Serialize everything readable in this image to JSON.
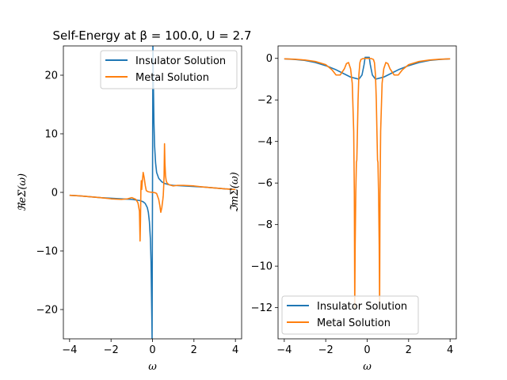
{
  "chart_data": [
    {
      "type": "line",
      "title": "Self-Energy at β = 100.0, U = 2.7",
      "xlabel": "ω",
      "ylabel": "ℜeΣ(ω)",
      "xlim": [
        -4.3,
        4.3
      ],
      "ylim": [
        -25,
        25
      ],
      "xticks": [
        -4,
        -2,
        0,
        2,
        4
      ],
      "yticks": [
        -20,
        -10,
        0,
        10,
        20
      ],
      "xtick_labels": [
        "−4",
        "−2",
        "0",
        "2",
        "4"
      ],
      "ytick_labels": [
        "−20",
        "−10",
        "0",
        "10",
        "20"
      ],
      "grid": false,
      "legend_position": "upper-right",
      "series": [
        {
          "name": "Insulator Solution",
          "color": "#1f77b4",
          "x": [
            -4,
            -3.5,
            -3,
            -2.5,
            -2,
            -1.5,
            -1,
            -0.8,
            -0.6,
            -0.45,
            -0.35,
            -0.25,
            -0.2,
            -0.15,
            -0.1,
            -0.07,
            -0.05,
            -0.03,
            -0.02,
            0.02,
            0.03,
            0.05,
            0.07,
            0.1,
            0.15,
            0.2,
            0.3,
            0.45,
            0.6,
            0.8,
            1,
            1.5,
            2,
            2.5,
            3,
            3.5,
            4
          ],
          "y": [
            -0.5,
            -0.6,
            -0.75,
            -0.9,
            -1.0,
            -1.1,
            -1.2,
            -1.3,
            -1.4,
            -1.6,
            -1.9,
            -2.6,
            -3.4,
            -5.0,
            -8.0,
            -12,
            -17,
            -22,
            -25,
            25,
            22,
            17,
            12,
            8.0,
            5.0,
            3.4,
            2.4,
            1.8,
            1.5,
            1.3,
            1.2,
            1.1,
            1.0,
            0.9,
            0.75,
            0.6,
            0.5
          ]
        },
        {
          "name": "Metal Solution",
          "color": "#ff7f0e",
          "x": [
            -4,
            -3.5,
            -3,
            -2.5,
            -2,
            -1.5,
            -1.2,
            -1.0,
            -0.8,
            -0.7,
            -0.63,
            -0.6,
            -0.58,
            -0.56,
            -0.54,
            -0.52,
            -0.5,
            -0.45,
            -0.4,
            -0.35,
            -0.3,
            -0.25,
            -0.2,
            -0.12,
            -0.05,
            0,
            0.05,
            0.12,
            0.2,
            0.3,
            0.35,
            0.4,
            0.45,
            0.5,
            0.52,
            0.54,
            0.56,
            0.58,
            0.6,
            0.63,
            0.66,
            0.7,
            0.8,
            1.0,
            1.2,
            1.5,
            2,
            2.5,
            3,
            3.5,
            4
          ],
          "y": [
            -0.5,
            -0.6,
            -0.75,
            -0.9,
            -1.1,
            -1.2,
            -1.1,
            -0.9,
            -1.2,
            -1.8,
            -3.2,
            -8.3,
            -5.0,
            0.5,
            2.0,
            0.5,
            1.5,
            3.4,
            2.5,
            1.2,
            0.3,
            0.2,
            0.1,
            0.05,
            0.02,
            0,
            -0.02,
            -0.05,
            -0.2,
            -1.2,
            -2.2,
            -3.4,
            -2.6,
            -1.2,
            -0.5,
            1.0,
            3.0,
            8.3,
            5.0,
            2.8,
            2.0,
            1.6,
            1.3,
            1.1,
            1.2,
            1.2,
            1.1,
            0.9,
            0.75,
            0.6,
            0.5
          ]
        }
      ]
    },
    {
      "type": "line",
      "title": "",
      "xlabel": "ω",
      "ylabel": "ℑmΣ(ω)",
      "xlim": [
        -4.3,
        4.3
      ],
      "ylim": [
        -13.5,
        0.6
      ],
      "xticks": [
        -4,
        -2,
        0,
        2,
        4
      ],
      "yticks": [
        0,
        -2,
        -4,
        -6,
        -8,
        -10,
        -12
      ],
      "xtick_labels": [
        "−4",
        "−2",
        "0",
        "2",
        "4"
      ],
      "ytick_labels": [
        "0",
        "−2",
        "−4",
        "−6",
        "−8",
        "−10",
        "−12"
      ],
      "grid": false,
      "legend_position": "lower-left",
      "series": [
        {
          "name": "Insulator Solution",
          "color": "#1f77b4",
          "x": [
            -4,
            -3.5,
            -3,
            -2.5,
            -2,
            -1.5,
            -1.2,
            -1,
            -0.8,
            -0.6,
            -0.4,
            -0.25,
            -0.15,
            -0.1,
            -0.05,
            0,
            0.05,
            0.1,
            0.15,
            0.25,
            0.4,
            0.6,
            0.8,
            1,
            1.2,
            1.5,
            2,
            2.5,
            3,
            3.5,
            4
          ],
          "y": [
            -0.02,
            -0.05,
            -0.1,
            -0.2,
            -0.35,
            -0.55,
            -0.7,
            -0.8,
            -0.9,
            -0.95,
            -1.0,
            -0.8,
            -0.3,
            0.05,
            0.05,
            0.05,
            0.05,
            0.05,
            -0.3,
            -0.8,
            -1.0,
            -0.95,
            -0.9,
            -0.8,
            -0.7,
            -0.55,
            -0.35,
            -0.2,
            -0.1,
            -0.05,
            -0.02
          ]
        },
        {
          "name": "Metal Solution",
          "color": "#ff7f0e",
          "x": [
            -4,
            -3.5,
            -3,
            -2.5,
            -2,
            -1.7,
            -1.5,
            -1.3,
            -1.1,
            -1.0,
            -0.9,
            -0.8,
            -0.72,
            -0.65,
            -0.62,
            -0.6,
            -0.58,
            -0.55,
            -0.52,
            -0.5,
            -0.47,
            -0.44,
            -0.4,
            -0.35,
            -0.3,
            -0.2,
            -0.1,
            -0.05,
            0,
            0.05,
            0.1,
            0.2,
            0.3,
            0.35,
            0.4,
            0.44,
            0.47,
            0.5,
            0.52,
            0.55,
            0.58,
            0.6,
            0.62,
            0.65,
            0.72,
            0.8,
            0.9,
            1.0,
            1.1,
            1.3,
            1.5,
            1.7,
            2,
            2.5,
            3,
            3.5,
            4
          ],
          "y": [
            -0.02,
            -0.04,
            -0.08,
            -0.15,
            -0.3,
            -0.55,
            -0.8,
            -0.8,
            -0.5,
            -0.25,
            -0.2,
            -0.5,
            -1.2,
            -3.5,
            -6.5,
            -12.0,
            -9.0,
            -6.5,
            -5.0,
            -4.9,
            -3.5,
            -2.0,
            -0.8,
            -0.2,
            -0.05,
            -0.01,
            0,
            0,
            0,
            0,
            0,
            -0.01,
            -0.05,
            -0.2,
            -0.8,
            -2.0,
            -3.5,
            -4.9,
            -5.0,
            -6.5,
            -9.0,
            -12.0,
            -6.5,
            -3.5,
            -1.2,
            -0.5,
            -0.2,
            -0.25,
            -0.5,
            -0.8,
            -0.8,
            -0.55,
            -0.3,
            -0.15,
            -0.08,
            -0.04,
            -0.02
          ]
        }
      ]
    }
  ]
}
